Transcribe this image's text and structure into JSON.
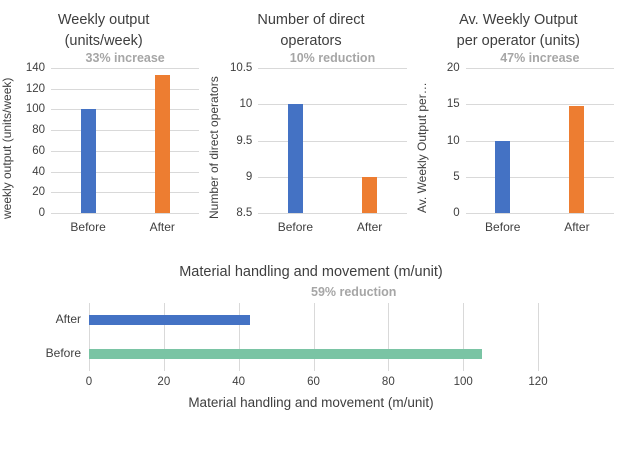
{
  "colors": {
    "before_blue": "#4472C4",
    "after_orange": "#ED7D31",
    "before_green": "#7AC4A4",
    "annotation_gray": "#A6A6A6",
    "text_dark": "#404040",
    "gridline": "#D9D9D9"
  },
  "chart_data": [
    {
      "id": "weekly-output",
      "type": "bar",
      "title": "Weekly output (units/week)",
      "title_lines": [
        "Weekly output",
        "(units/week)"
      ],
      "annotation": "33% increase",
      "ylabel": "weekly output (units/week)",
      "xlabel": "",
      "categories": [
        "Before",
        "After"
      ],
      "values": [
        100,
        133
      ],
      "ylim": [
        0,
        140
      ],
      "yticks": [
        0,
        20,
        40,
        60,
        80,
        100,
        120,
        140
      ],
      "bar_colors": [
        "#4472C4",
        "#ED7D31"
      ],
      "grid": "horizontal",
      "legend": "none"
    },
    {
      "id": "direct-operators",
      "type": "bar",
      "title": "Number of direct operators",
      "title_lines": [
        "Number of direct",
        "operators"
      ],
      "annotation": "10% reduction",
      "ylabel": "Number of direct operators",
      "xlabel": "",
      "categories": [
        "Before",
        "After"
      ],
      "values": [
        10,
        9
      ],
      "ylim": [
        8.5,
        10.5
      ],
      "yticks": [
        8.5,
        9,
        9.5,
        10,
        10.5
      ],
      "bar_colors": [
        "#4472C4",
        "#ED7D31"
      ],
      "grid": "horizontal",
      "legend": "none"
    },
    {
      "id": "output-per-operator",
      "type": "bar",
      "title": "Av. Weekly Output per operator (units)",
      "title_lines": [
        "Av. Weekly Output",
        "per operator (units)"
      ],
      "annotation": "47% increase",
      "ylabel": "Av. Weekly Output per…",
      "xlabel": "",
      "categories": [
        "Before",
        "After"
      ],
      "values": [
        10,
        14.7
      ],
      "ylim": [
        0,
        20
      ],
      "yticks": [
        0,
        5,
        10,
        15,
        20
      ],
      "bar_colors": [
        "#4472C4",
        "#ED7D31"
      ],
      "grid": "horizontal",
      "legend": "none"
    },
    {
      "id": "material-handling",
      "type": "horizontal-bar",
      "title": "Material handling and movement (m/unit)",
      "annotation": "59% reduction",
      "xlabel": "Material handling and movement (m/unit)",
      "ylabel": "",
      "categories": [
        "After",
        "Before"
      ],
      "values": [
        43,
        105
      ],
      "xlim": [
        0,
        120
      ],
      "xticks": [
        0,
        20,
        40,
        60,
        80,
        100,
        120
      ],
      "bar_colors": [
        "#4472C4",
        "#7AC4A4"
      ],
      "grid": "vertical",
      "legend": "none"
    }
  ]
}
